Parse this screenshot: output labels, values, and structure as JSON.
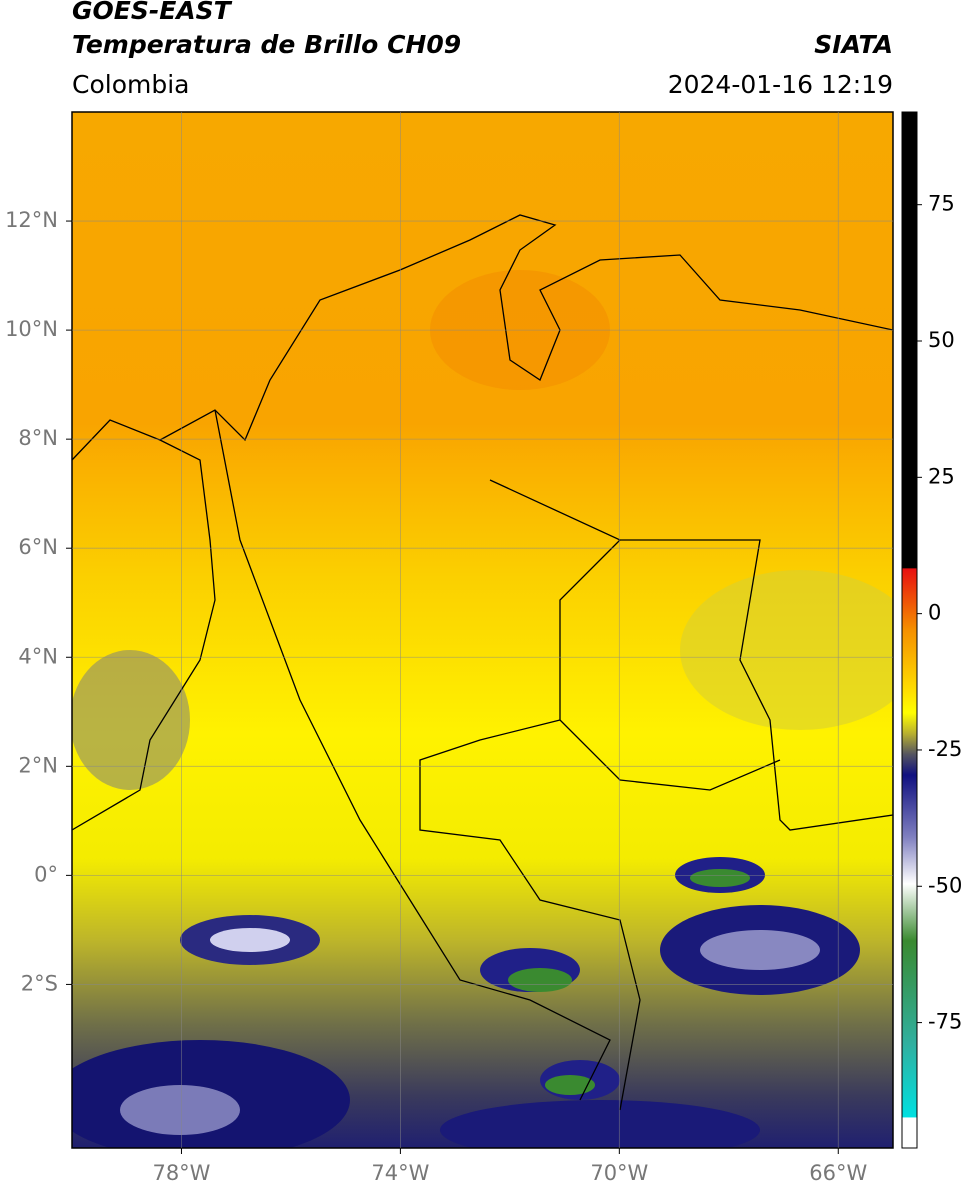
{
  "header": {
    "satellite": "GOES-EAST",
    "product": "Temperatura de Brillo CH09",
    "source": "SIATA",
    "region": "Colombia",
    "datetime": "2024-01-16 12:19"
  },
  "map": {
    "xlim": [
      -80,
      -65
    ],
    "ylim": [
      -5,
      14
    ],
    "xticks": [
      {
        "value": -78,
        "label": "78°W"
      },
      {
        "value": -74,
        "label": "74°W"
      },
      {
        "value": -70,
        "label": "70°W"
      },
      {
        "value": -66,
        "label": "66°W"
      }
    ],
    "yticks": [
      {
        "value": 12,
        "label": "12°N"
      },
      {
        "value": 10,
        "label": "10°N"
      },
      {
        "value": 8,
        "label": "8°N"
      },
      {
        "value": 6,
        "label": "6°N"
      },
      {
        "value": 4,
        "label": "4°N"
      },
      {
        "value": 2,
        "label": "2°N"
      },
      {
        "value": 0,
        "label": "0°"
      },
      {
        "value": -2,
        "label": "2°S"
      }
    ],
    "grid": true
  },
  "colorbar": {
    "lim": [
      -98,
      92
    ],
    "ticks": [
      75,
      50,
      25,
      0,
      -25,
      -50,
      -75
    ]
  }
}
